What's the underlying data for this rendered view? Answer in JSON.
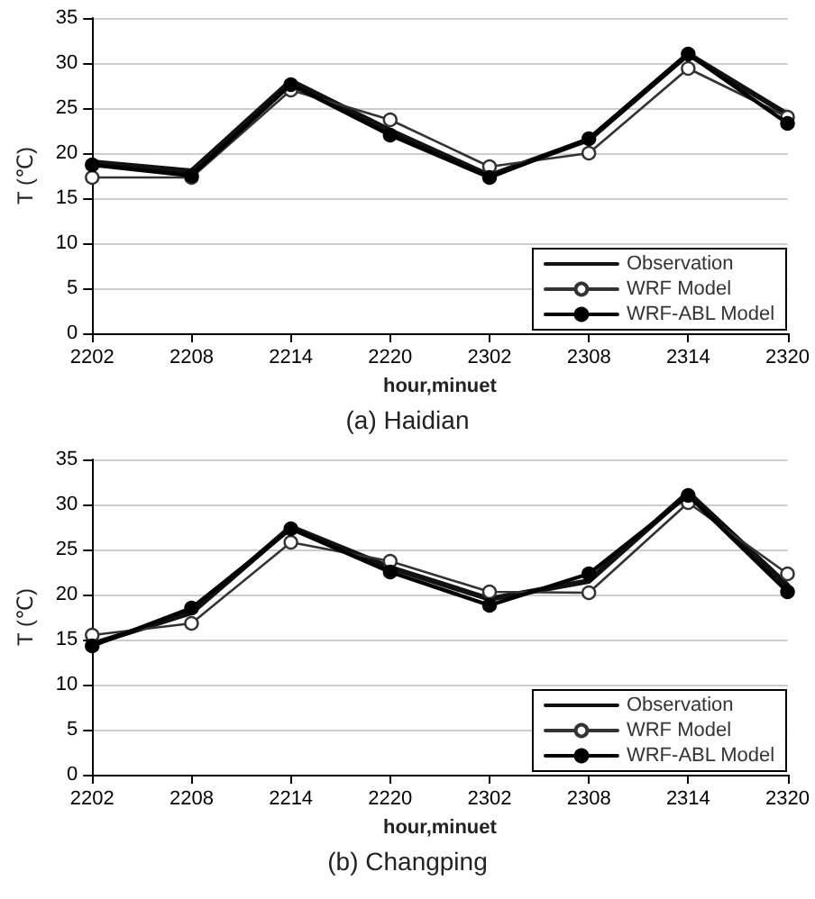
{
  "chart_data": [
    {
      "type": "line",
      "title": "(a) Haidian",
      "xlabel": "hour,minuet",
      "ylabel": "T (℃)",
      "categories": [
        "2202",
        "2208",
        "2214",
        "2220",
        "2302",
        "2308",
        "2314",
        "2320"
      ],
      "ylim": [
        0,
        35
      ],
      "yticks": [
        0,
        5,
        10,
        15,
        20,
        25,
        30,
        35
      ],
      "grid": "y",
      "legend": "bottom right",
      "series": [
        {
          "name": "Observation",
          "color": "#111111",
          "marker": "none",
          "values": [
            19,
            18,
            28,
            22.5,
            17.5,
            21.5,
            31,
            24.3
          ]
        },
        {
          "name": "WRF Model",
          "color": "#333333",
          "marker": "circle",
          "values": [
            17.3,
            17.3,
            27,
            23.7,
            18.5,
            20,
            29.4,
            24
          ]
        },
        {
          "name": "WRF-ABL Model",
          "color": "#000000",
          "marker": "circle",
          "values": [
            18.7,
            17.5,
            27.6,
            22,
            17.3,
            21.6,
            31,
            23.3
          ]
        }
      ]
    },
    {
      "type": "line",
      "title": "(b) Changping",
      "xlabel": "hour,minuet",
      "ylabel": "T (℃)",
      "categories": [
        "2202",
        "2208",
        "2214",
        "2220",
        "2302",
        "2308",
        "2314",
        "2320"
      ],
      "ylim": [
        0,
        35
      ],
      "yticks": [
        0,
        5,
        10,
        15,
        20,
        25,
        30,
        35
      ],
      "grid": "y",
      "legend": "bottom right",
      "series": [
        {
          "name": "Observation",
          "color": "#111111",
          "marker": "none",
          "values": [
            14.5,
            18,
            27.5,
            23,
            19.5,
            21.5,
            31.3,
            21
          ]
        },
        {
          "name": "WRF Model",
          "color": "#333333",
          "marker": "circle",
          "values": [
            15.5,
            16.8,
            25.8,
            23.7,
            20.3,
            20.2,
            30.2,
            22.3
          ]
        },
        {
          "name": "WRF-ABL Model",
          "color": "#000000",
          "marker": "circle",
          "values": [
            14.3,
            18.5,
            27.3,
            22.5,
            18.8,
            22.3,
            31,
            20.3
          ]
        }
      ]
    }
  ]
}
